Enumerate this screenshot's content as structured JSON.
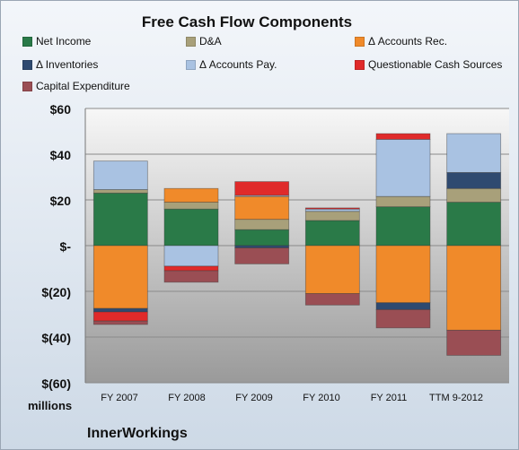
{
  "chart_data": {
    "type": "bar",
    "stacked": true,
    "title": "Free Cash Flow Components",
    "categories": [
      "FY 2007",
      "FY 2008",
      "FY 2009",
      "FY 2010",
      "FY 2011",
      "TTM 9-2012"
    ],
    "ylim": [
      -60,
      60
    ],
    "yticks": [
      60,
      40,
      20,
      0,
      -20,
      -40,
      -60
    ],
    "ytick_labels": [
      "$60",
      "$40",
      "$20",
      "$-",
      "$(20)",
      "$(40)",
      "$(60)"
    ],
    "ylabel": "",
    "xlabel": "",
    "units_label": "millions",
    "grid": true,
    "legend_position": "top",
    "series": [
      {
        "name": "Net Income",
        "color": "#2a7a48",
        "values": [
          23,
          16,
          7,
          11,
          17,
          19
        ]
      },
      {
        "name": "D&A",
        "color": "#a8a07a",
        "values": [
          1.5,
          3,
          4.5,
          4,
          4.5,
          6
        ]
      },
      {
        "name": "Δ Accounts Rec.",
        "color": "#f08a2a",
        "values": [
          -27.5,
          6,
          10,
          -21,
          -25,
          -37
        ]
      },
      {
        "name": "Δ Inventories",
        "color": "#2f4a70",
        "values": [
          -1.5,
          0,
          -1,
          0,
          -3,
          7
        ]
      },
      {
        "name": "Δ Accounts Pay.",
        "color": "#a9c2e2",
        "values": [
          12.5,
          -9,
          0.5,
          1,
          25,
          17
        ]
      },
      {
        "name": "Questionable Cash Sources",
        "color": "#e02a2a",
        "values": [
          -4,
          -2,
          6,
          0.5,
          2.5,
          0
        ]
      },
      {
        "name": "Capital Expenditure",
        "color": "#9a4e54",
        "values": [
          -1.5,
          -5,
          -7,
          -5,
          -8,
          -11
        ]
      }
    ]
  },
  "company": "InnerWorkings"
}
